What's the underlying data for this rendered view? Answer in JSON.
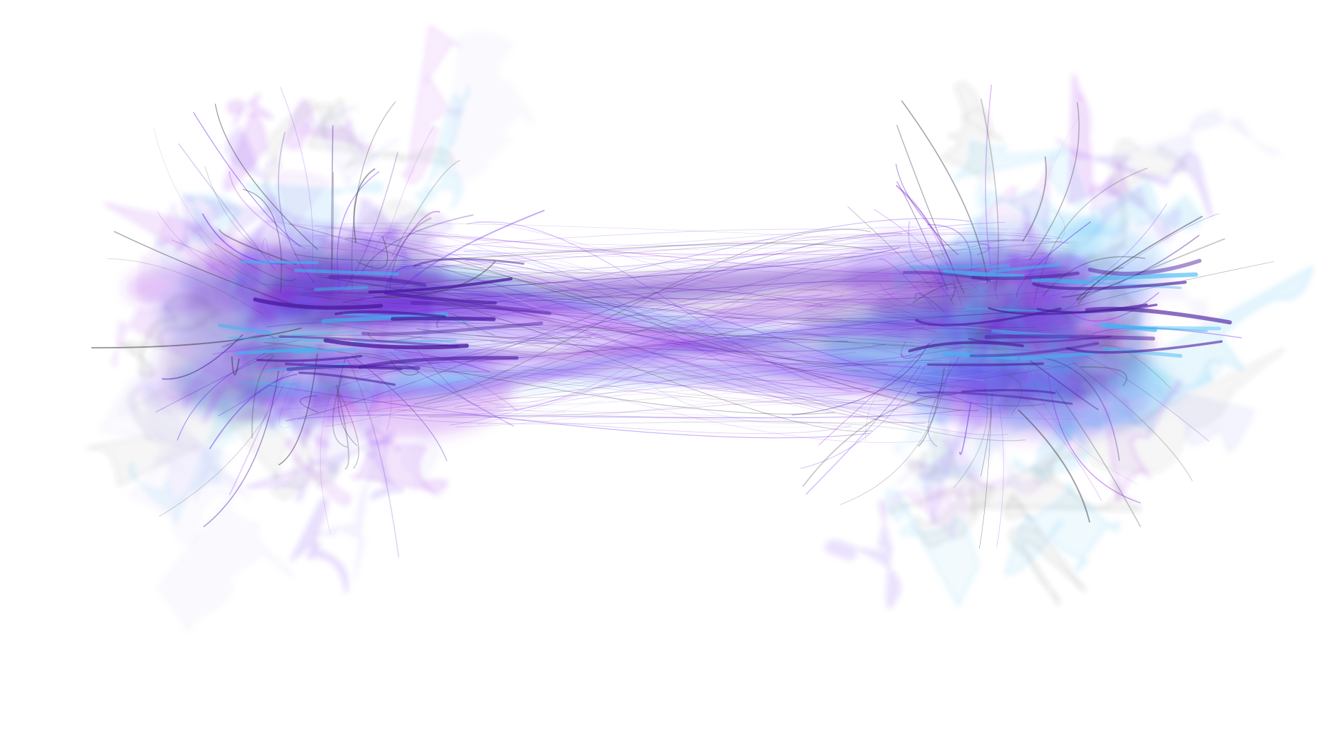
{
  "palette": {
    "background": "#ffffff",
    "violet": "#6a2cf0",
    "deep_purple": "#4b1b9e",
    "magenta": "#a233e8",
    "cyan": "#3fb6f2",
    "lavender": "#b9b4f7",
    "gray": "#3a3a44"
  },
  "composition": {
    "subject": "abstract-fiber-mesh",
    "clusters": [
      "left-cluster",
      "right-cluster"
    ],
    "bridge": "horizontal-fiber-bridge"
  }
}
